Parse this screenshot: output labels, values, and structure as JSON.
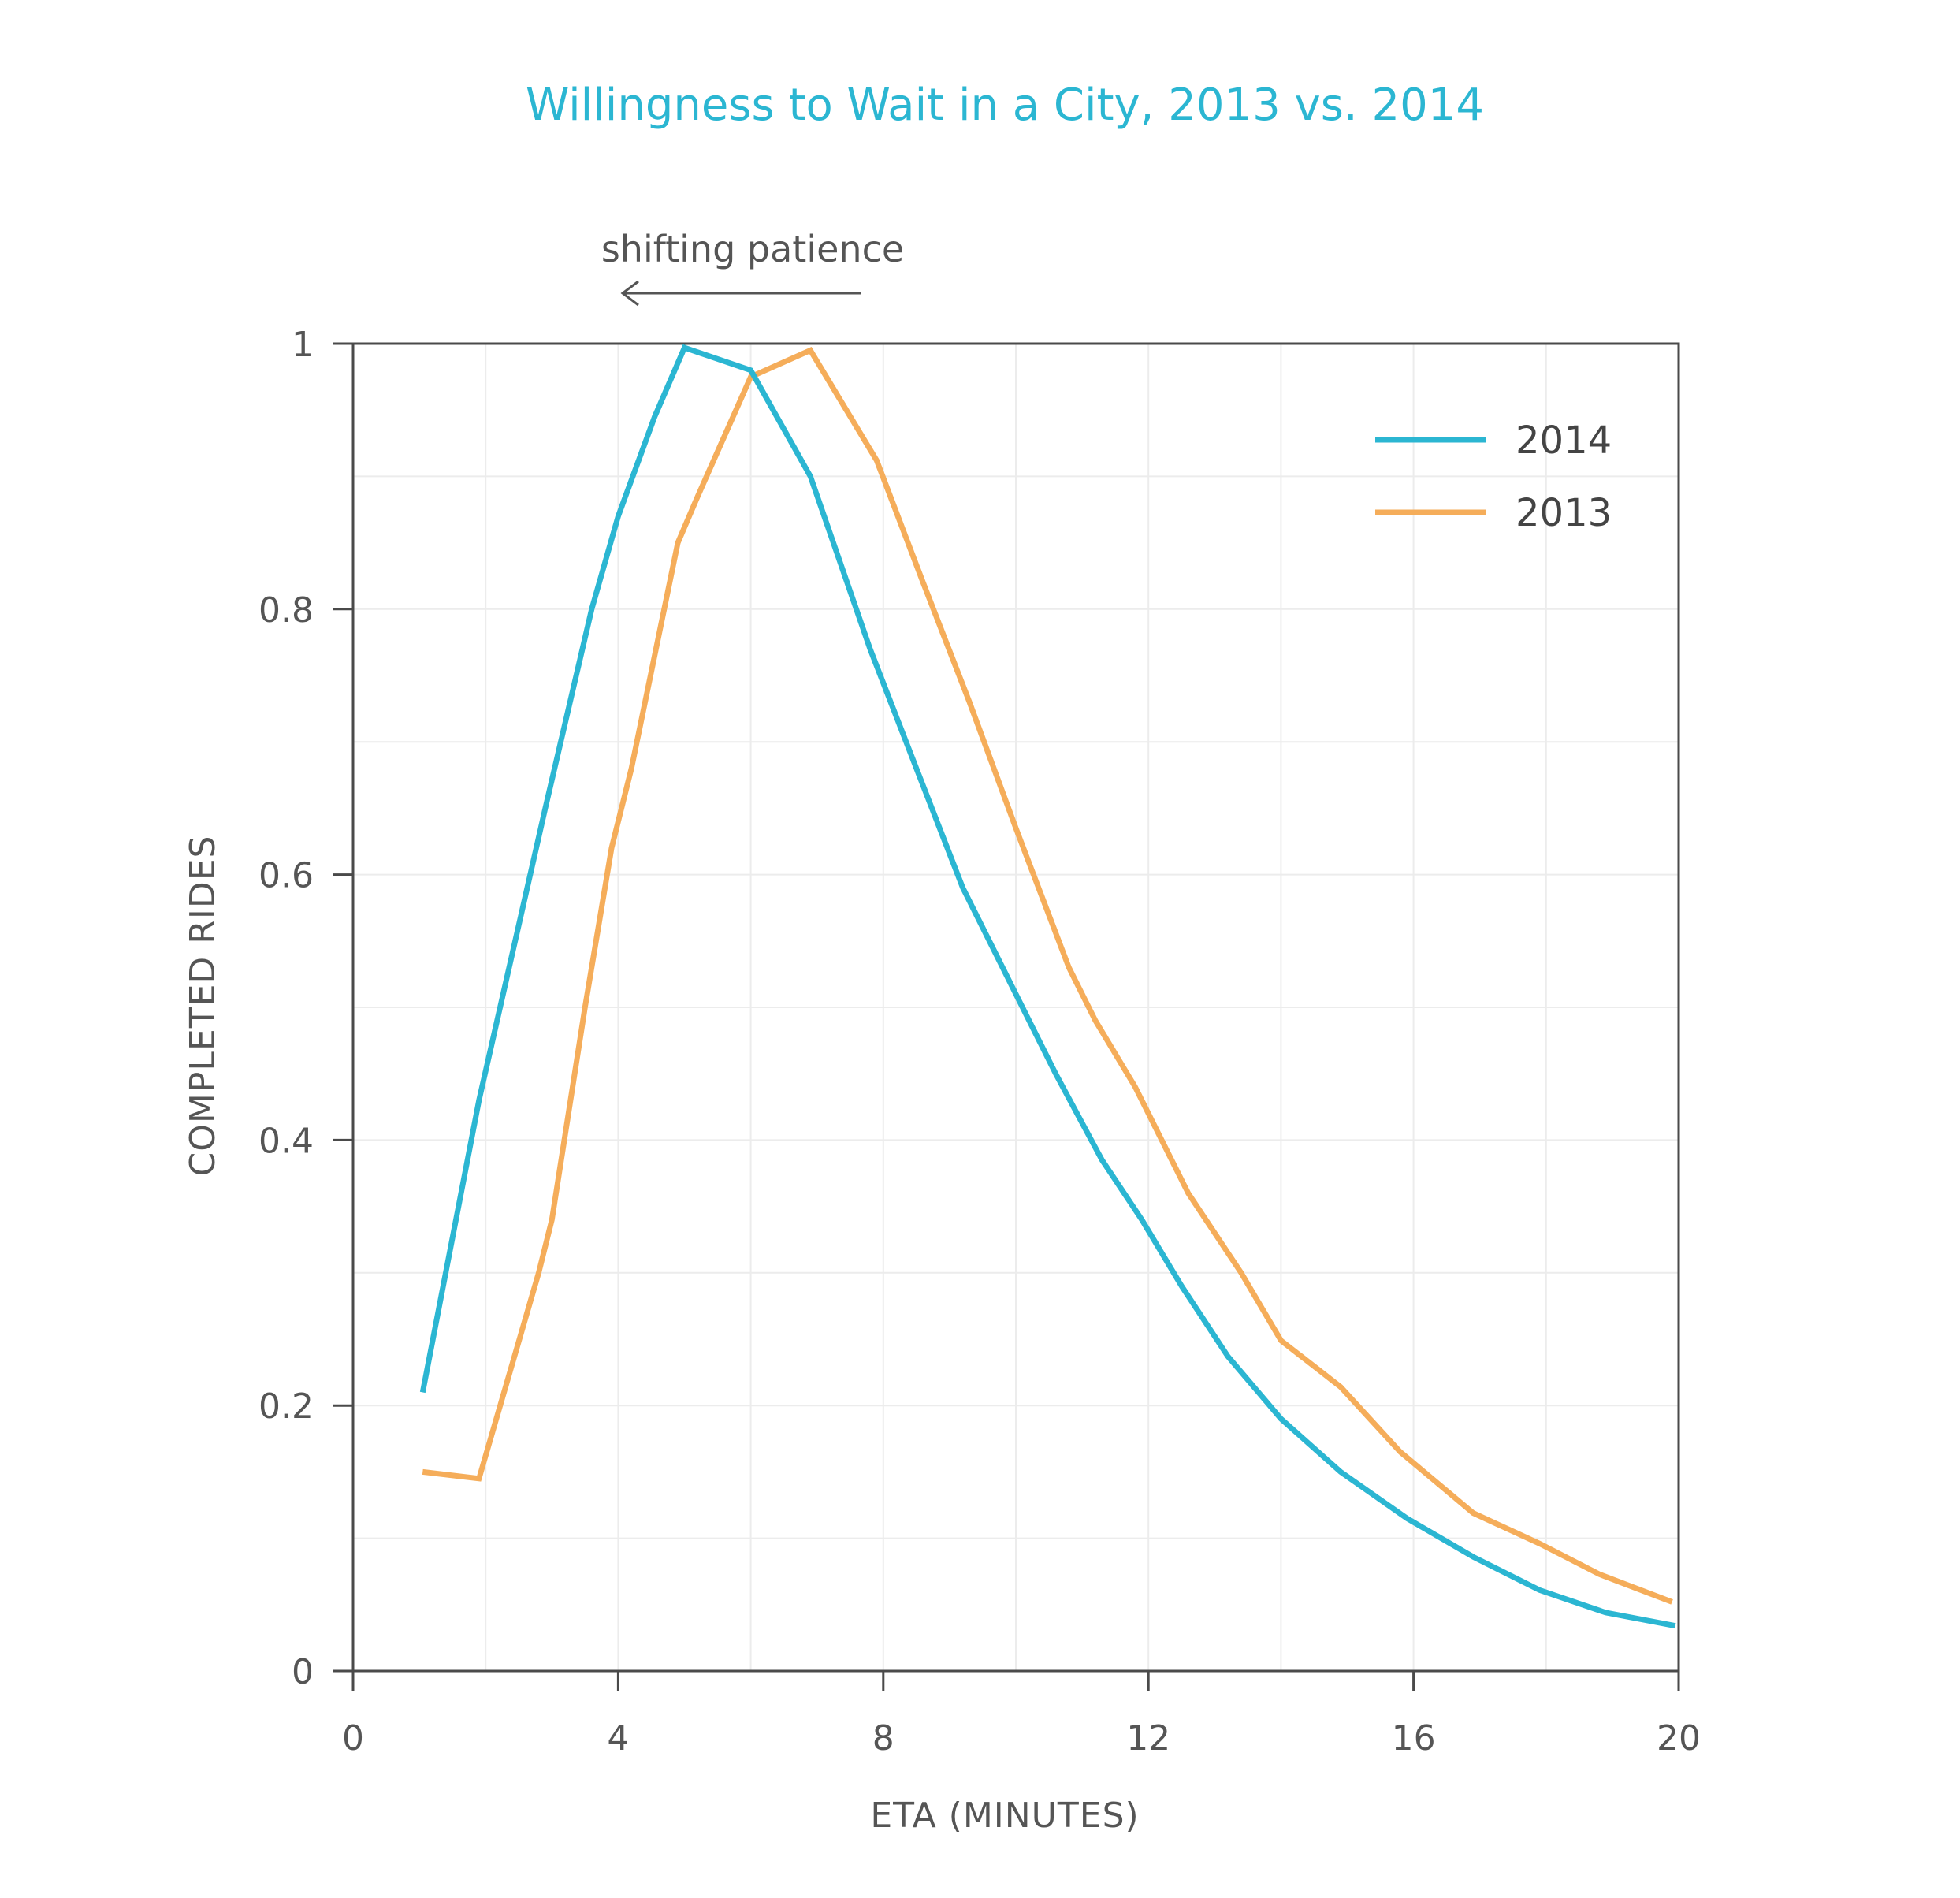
{
  "chart_data": {
    "type": "line",
    "title": "Willingness to Wait in a City, 2013 vs. 2014",
    "xlabel": "ETA (MINUTES)",
    "ylabel": "COMPLETED RIDES",
    "xlim": [
      0,
      20
    ],
    "ylim": [
      0,
      1
    ],
    "x_ticks": [
      "0",
      "4",
      "8",
      "12",
      "16",
      "20"
    ],
    "y_ticks": [
      "0",
      "0.2",
      "0.4",
      "0.6",
      "0.8",
      "1"
    ],
    "grid": true,
    "legend_position": "top-right",
    "annotation": {
      "text": "shifting patience",
      "arrow": "left"
    },
    "series": [
      {
        "name": "2014",
        "color": "#2bb6d2",
        "points": [
          [
            1.05,
            0.21
          ],
          [
            1.9,
            0.43
          ],
          [
            2.9,
            0.65
          ],
          [
            3.6,
            0.8
          ],
          [
            4.0,
            0.87
          ],
          [
            4.55,
            0.945
          ],
          [
            5.0,
            0.997
          ],
          [
            6.0,
            0.98
          ],
          [
            6.9,
            0.9
          ],
          [
            7.8,
            0.77
          ],
          [
            8.5,
            0.68
          ],
          [
            9.2,
            0.59
          ],
          [
            10.0,
            0.51
          ],
          [
            10.6,
            0.45
          ],
          [
            11.3,
            0.385
          ],
          [
            11.9,
            0.34
          ],
          [
            12.5,
            0.29
          ],
          [
            13.2,
            0.237
          ],
          [
            14.0,
            0.19
          ],
          [
            14.9,
            0.15
          ],
          [
            15.9,
            0.115
          ],
          [
            16.9,
            0.086
          ],
          [
            17.9,
            0.061
          ],
          [
            18.9,
            0.044
          ],
          [
            19.95,
            0.034
          ]
        ]
      },
      {
        "name": "2013",
        "color": "#f5ad5a",
        "points": [
          [
            1.05,
            0.15
          ],
          [
            1.9,
            0.145
          ],
          [
            2.8,
            0.3
          ],
          [
            3.0,
            0.34
          ],
          [
            3.5,
            0.5
          ],
          [
            3.9,
            0.62
          ],
          [
            4.2,
            0.68
          ],
          [
            4.9,
            0.85
          ],
          [
            5.2,
            0.885
          ],
          [
            6.0,
            0.975
          ],
          [
            6.9,
            0.995
          ],
          [
            7.9,
            0.912
          ],
          [
            8.6,
            0.82
          ],
          [
            9.3,
            0.73
          ],
          [
            10.0,
            0.635
          ],
          [
            10.8,
            0.53
          ],
          [
            11.2,
            0.49
          ],
          [
            11.8,
            0.44
          ],
          [
            12.6,
            0.36
          ],
          [
            13.4,
            0.3
          ],
          [
            14.0,
            0.249
          ],
          [
            14.9,
            0.214
          ],
          [
            15.8,
            0.165
          ],
          [
            16.9,
            0.119
          ],
          [
            17.9,
            0.096
          ],
          [
            18.8,
            0.073
          ],
          [
            19.9,
            0.052
          ]
        ]
      }
    ]
  }
}
